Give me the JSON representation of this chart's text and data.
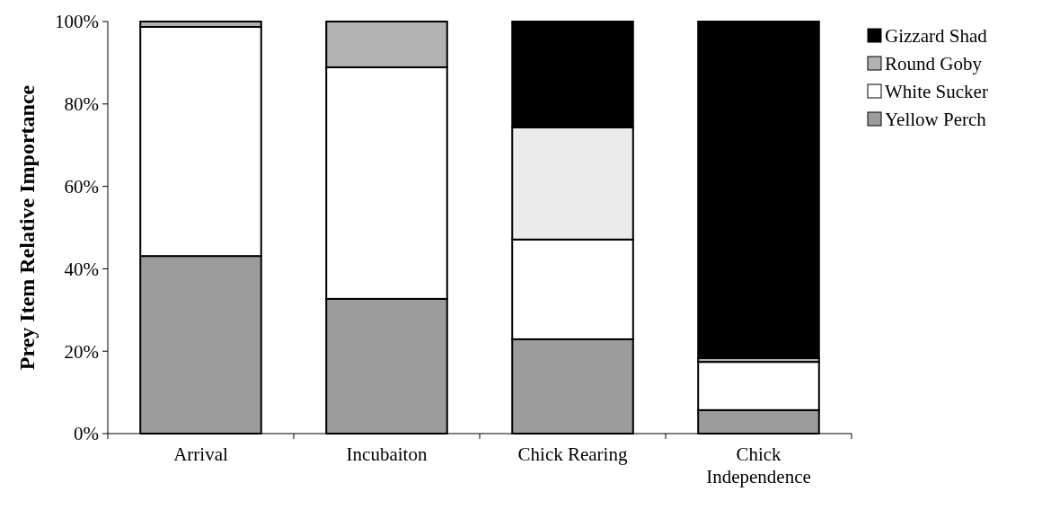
{
  "chart_data": {
    "type": "bar",
    "stacked": true,
    "ylabel": "Prey Item Relative Importance",
    "categories": [
      "Arrival",
      "Incubaiton",
      "Chick Rearing",
      "Chick Independence"
    ],
    "series": [
      {
        "name": "Yellow Perch",
        "color": "#9c9c9c",
        "values": [
          43.1,
          32.7,
          22.9,
          5.7
        ]
      },
      {
        "name": "White Sucker",
        "color": "#ffffff",
        "values": [
          55.6,
          56.2,
          24.2,
          11.7
        ]
      },
      {
        "name": "Round Goby",
        "color": "#b2b2b2",
        "values": [
          1.3,
          11.1,
          0,
          0.9
        ]
      },
      {
        "color": "#ebebeb",
        "values": [
          0,
          0,
          27.2,
          0
        ]
      },
      {
        "name": "Gizzard Shad",
        "color": "#000000",
        "values": [
          0,
          0,
          25.7,
          81.7
        ]
      }
    ],
    "ylim": [
      0,
      100
    ],
    "yticks": [
      {
        "value": 0,
        "label": "0%"
      },
      {
        "value": 20,
        "label": "20%"
      },
      {
        "value": 40,
        "label": "40%"
      },
      {
        "value": 60,
        "label": "60%"
      },
      {
        "value": 80,
        "label": "80%"
      },
      {
        "value": 100,
        "label": "100%"
      }
    ],
    "legend": "top right"
  }
}
